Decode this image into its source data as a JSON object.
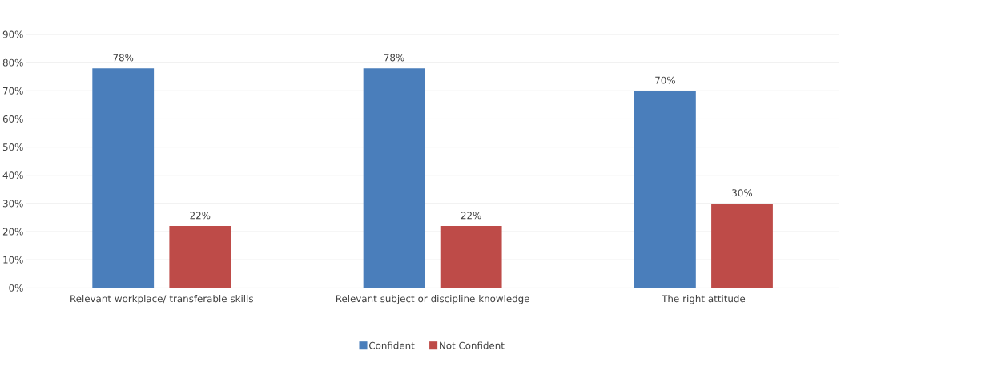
{
  "chart_data": {
    "type": "bar",
    "categories": [
      "Relevant workplace/ transferable skills",
      "Relevant subject or discipline knowledge",
      "The right attitude"
    ],
    "series": [
      {
        "name": "Confident",
        "color": "#4a7ebb",
        "values": [
          78,
          78,
          70
        ],
        "value_labels": [
          "78%",
          "78%",
          "70%"
        ]
      },
      {
        "name": "Not Confident",
        "color": "#be4b48",
        "values": [
          22,
          22,
          30
        ],
        "value_labels": [
          "22%",
          "22%",
          "30%"
        ]
      }
    ],
    "ylim": [
      0,
      90
    ],
    "yticks": [
      {
        "value": 0,
        "label": "0%"
      },
      {
        "value": 10,
        "label": "10%"
      },
      {
        "value": 20,
        "label": "20%"
      },
      {
        "value": 30,
        "label": "30%"
      },
      {
        "value": 40,
        "label": "40%"
      },
      {
        "value": 50,
        "label": "50%"
      },
      {
        "value": 60,
        "label": "60%"
      },
      {
        "value": 70,
        "label": "70%"
      },
      {
        "value": 80,
        "label": "80%"
      },
      {
        "value": 90,
        "label": "90%"
      }
    ],
    "grid": "y",
    "legend": "bottom"
  }
}
